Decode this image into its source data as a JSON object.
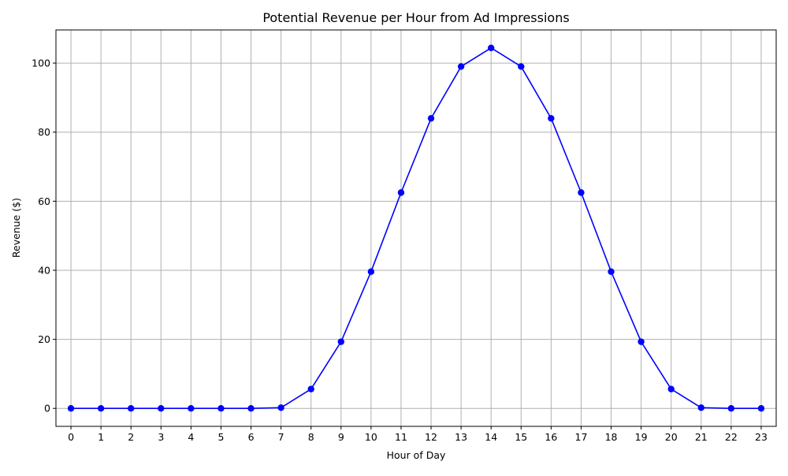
{
  "chart_data": {
    "type": "line",
    "title": "Potential Revenue per Hour from Ad Impressions",
    "xlabel": "Hour of Day",
    "ylabel": "Revenue ($)",
    "x": [
      0,
      1,
      2,
      3,
      4,
      5,
      6,
      7,
      8,
      9,
      10,
      11,
      12,
      13,
      14,
      15,
      16,
      17,
      18,
      19,
      20,
      21,
      22,
      23
    ],
    "x_tick_labels": [
      "0",
      "1",
      "2",
      "3",
      "4",
      "5",
      "6",
      "7",
      "8",
      "9",
      "10",
      "11",
      "12",
      "13",
      "14",
      "15",
      "16",
      "17",
      "18",
      "19",
      "20",
      "21",
      "22",
      "23"
    ],
    "series": [
      {
        "values": [
          0.0,
          0.0,
          0.0,
          0.0,
          0.0,
          0.0,
          0.0,
          0.2,
          5.6,
          19.3,
          39.6,
          62.5,
          84.0,
          99.0,
          104.4,
          99.0,
          84.0,
          62.5,
          39.6,
          19.3,
          5.6,
          0.2,
          0.0,
          0.0
        ],
        "color": "#0000ff",
        "marker": "circle"
      }
    ],
    "xlim": [
      -0.5,
      23.5
    ],
    "ylim": [
      -5.2,
      109.6
    ],
    "y_ticks": [
      0,
      20,
      40,
      60,
      80,
      100
    ],
    "y_tick_labels": [
      "0",
      "20",
      "40",
      "60",
      "80",
      "100"
    ],
    "grid": true,
    "grid_color": "#b0b0b0",
    "line_color": "#0000ff"
  }
}
